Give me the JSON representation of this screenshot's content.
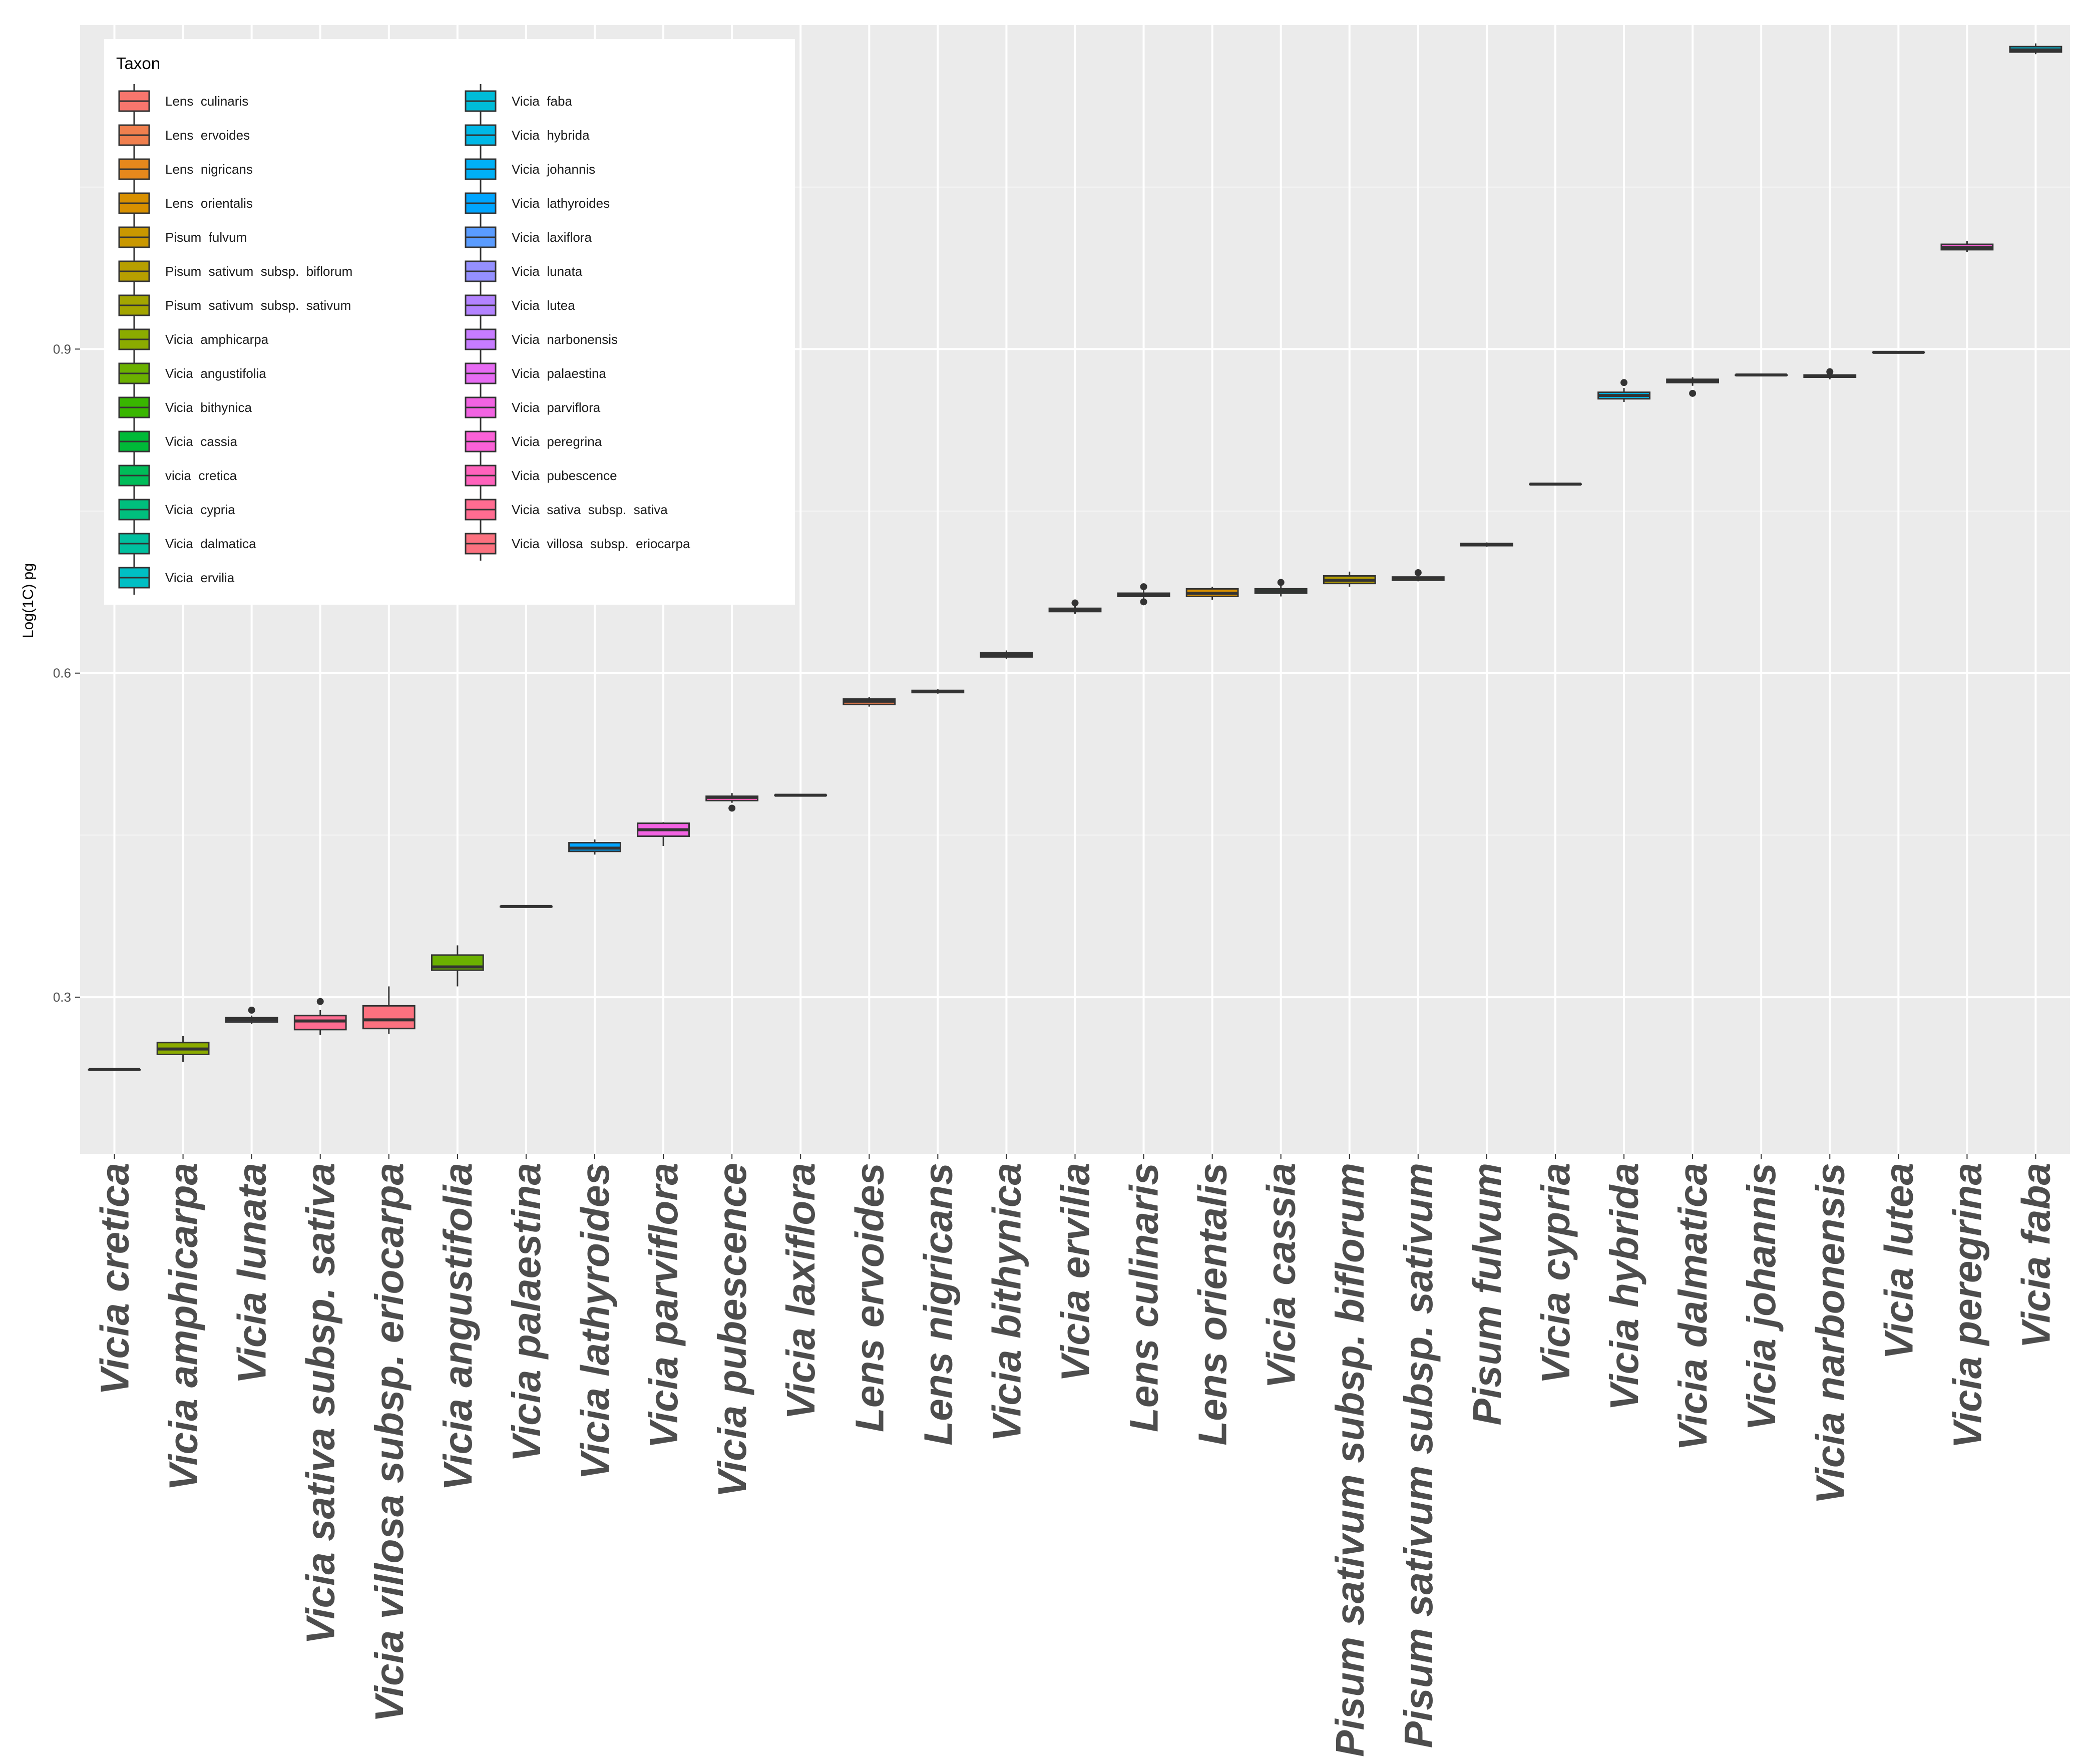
{
  "chart_data": {
    "type": "boxplot",
    "ylabel": "Log(1C) pg",
    "xlabel": "",
    "ylim": [
      0.155,
      1.2
    ],
    "yticks": [
      0.3,
      0.6,
      0.9
    ],
    "ytick_labels": [
      "0.3",
      "0.6",
      "0.9"
    ],
    "grid": true,
    "legend": {
      "title": "Taxon",
      "placement": "top-left inside",
      "entries": [
        {
          "label": "Lens  culinaris",
          "color": "#F8766D"
        },
        {
          "label": "Lens  ervoides",
          "color": "#F07F4E"
        },
        {
          "label": "Lens  nigricans",
          "color": "#E6881C"
        },
        {
          "label": "Lens  orientalis",
          "color": "#D89000"
        },
        {
          "label": "Pisum  fulvum",
          "color": "#C99800"
        },
        {
          "label": "Pisum  sativum  subsp.  biflorum",
          "color": "#B79F00"
        },
        {
          "label": "Pisum  sativum  subsp.  sativum",
          "color": "#A3A500"
        },
        {
          "label": "Vicia  amphicarpa",
          "color": "#8BAB00"
        },
        {
          "label": "Vicia  angustifolia",
          "color": "#6BB100"
        },
        {
          "label": "Vicia  bithynica",
          "color": "#39B600"
        },
        {
          "label": "Vicia  cassia",
          "color": "#00BA38"
        },
        {
          "label": "vicia  cretica",
          "color": "#00BC59"
        },
        {
          "label": "Vicia  cypria",
          "color": "#00BF7D"
        },
        {
          "label": "Vicia  dalmatica",
          "color": "#00C09F"
        },
        {
          "label": "Vicia  ervilia",
          "color": "#00BFC4"
        },
        {
          "label": "Vicia  faba",
          "color": "#00BCD8"
        },
        {
          "label": "Vicia  hybrida",
          "color": "#00B8E7"
        },
        {
          "label": "Vicia  johannis",
          "color": "#00B0F6"
        },
        {
          "label": "Vicia  lathyroides",
          "color": "#00A5FF"
        },
        {
          "label": "Vicia  laxiflora",
          "color": "#5A9CFF"
        },
        {
          "label": "Vicia  lunata",
          "color": "#9590FF"
        },
        {
          "label": "Vicia  lutea",
          "color": "#B383FF"
        },
        {
          "label": "Vicia  narbonensis",
          "color": "#C77CFF"
        },
        {
          "label": "Vicia  palaestina",
          "color": "#E76BF3"
        },
        {
          "label": "Vicia  parviflora",
          "color": "#F263E2"
        },
        {
          "label": "Vicia  peregrina",
          "color": "#FB61D7"
        },
        {
          "label": "Vicia  pubescence",
          "color": "#FF62BC"
        },
        {
          "label": "Vicia  sativa  subsp.  sativa",
          "color": "#FF6C91"
        },
        {
          "label": "Vicia  villosa  subsp.  eriocarpa",
          "color": "#FC717F"
        }
      ]
    },
    "boxes": [
      {
        "label": "Vicia cretica",
        "color": "#00BC59",
        "min": 0.233,
        "q1": 0.233,
        "median": 0.233,
        "q3": 0.233,
        "max": 0.233,
        "outliers": []
      },
      {
        "label": "Vicia amphicarpa",
        "color": "#8BAB00",
        "min": 0.24,
        "q1": 0.247,
        "median": 0.252,
        "q3": 0.258,
        "max": 0.264,
        "outliers": []
      },
      {
        "label": "Vicia lunata",
        "color": "#9590FF",
        "min": 0.275,
        "q1": 0.277,
        "median": 0.279,
        "q3": 0.281,
        "max": 0.283,
        "outliers": [
          0.288
        ]
      },
      {
        "label": "Vicia sativa subsp. sativa",
        "color": "#FF6C91",
        "min": 0.265,
        "q1": 0.27,
        "median": 0.278,
        "q3": 0.283,
        "max": 0.288,
        "outliers": [
          0.296
        ]
      },
      {
        "label": "Vicia villosa subsp. eriocarpa",
        "color": "#FC717F",
        "min": 0.266,
        "q1": 0.271,
        "median": 0.279,
        "q3": 0.292,
        "max": 0.31,
        "outliers": []
      },
      {
        "label": "Vicia angustifolia",
        "color": "#6BB100",
        "min": 0.31,
        "q1": 0.325,
        "median": 0.328,
        "q3": 0.339,
        "max": 0.348,
        "outliers": []
      },
      {
        "label": "Vicia palaestina",
        "color": "#E76BF3",
        "min": 0.384,
        "q1": 0.384,
        "median": 0.384,
        "q3": 0.384,
        "max": 0.384,
        "outliers": []
      },
      {
        "label": "Vicia lathyroides",
        "color": "#00A5FF",
        "min": 0.432,
        "q1": 0.435,
        "median": 0.438,
        "q3": 0.443,
        "max": 0.446,
        "outliers": []
      },
      {
        "label": "Vicia parviflora",
        "color": "#F263E2",
        "min": 0.44,
        "q1": 0.449,
        "median": 0.455,
        "q3": 0.461,
        "max": 0.462,
        "outliers": []
      },
      {
        "label": "Vicia pubescence",
        "color": "#FF62BC",
        "min": 0.48,
        "q1": 0.482,
        "median": 0.485,
        "q3": 0.486,
        "max": 0.489,
        "outliers": [
          0.475
        ]
      },
      {
        "label": "Vicia laxiflora",
        "color": "#5A9CFF",
        "min": 0.487,
        "q1": 0.487,
        "median": 0.487,
        "q3": 0.487,
        "max": 0.487,
        "outliers": []
      },
      {
        "label": "Lens ervoides",
        "color": "#F07F4E",
        "min": 0.569,
        "q1": 0.571,
        "median": 0.574,
        "q3": 0.576,
        "max": 0.578,
        "outliers": []
      },
      {
        "label": "Lens nigricans",
        "color": "#E6881C",
        "min": 0.581,
        "q1": 0.582,
        "median": 0.583,
        "q3": 0.584,
        "max": 0.585,
        "outliers": []
      },
      {
        "label": "Vicia bithynica",
        "color": "#39B600",
        "min": 0.613,
        "q1": 0.615,
        "median": 0.617,
        "q3": 0.619,
        "max": 0.621,
        "outliers": []
      },
      {
        "label": "Vicia ervilia",
        "color": "#00BFC4",
        "min": 0.655,
        "q1": 0.657,
        "median": 0.658,
        "q3": 0.66,
        "max": 0.662,
        "outliers": [
          0.665
        ]
      },
      {
        "label": "Lens culinaris",
        "color": "#F8766D",
        "min": 0.668,
        "q1": 0.671,
        "median": 0.672,
        "q3": 0.674,
        "max": 0.679,
        "outliers": [
          0.666,
          0.68
        ]
      },
      {
        "label": "Lens orientalis",
        "color": "#D89000",
        "min": 0.668,
        "q1": 0.671,
        "median": 0.674,
        "q3": 0.678,
        "max": 0.68,
        "outliers": []
      },
      {
        "label": "Vicia cassia",
        "color": "#00BA38",
        "min": 0.671,
        "q1": 0.674,
        "median": 0.676,
        "q3": 0.678,
        "max": 0.681,
        "outliers": [
          0.684
        ]
      },
      {
        "label": "Pisum sativum subsp. biflorum",
        "color": "#B79F00",
        "min": 0.68,
        "q1": 0.683,
        "median": 0.686,
        "q3": 0.69,
        "max": 0.694,
        "outliers": []
      },
      {
        "label": "Pisum sativum subsp. sativum",
        "color": "#A3A500",
        "min": 0.685,
        "q1": 0.686,
        "median": 0.688,
        "q3": 0.689,
        "max": 0.691,
        "outliers": [
          0.693
        ]
      },
      {
        "label": "Pisum fulvum",
        "color": "#C99800",
        "min": 0.717,
        "q1": 0.718,
        "median": 0.719,
        "q3": 0.72,
        "max": 0.721,
        "outliers": []
      },
      {
        "label": "Vicia cypria",
        "color": "#00BF7D",
        "min": 0.775,
        "q1": 0.775,
        "median": 0.775,
        "q3": 0.775,
        "max": 0.775,
        "outliers": []
      },
      {
        "label": "Vicia hybrida",
        "color": "#00B8E7",
        "min": 0.851,
        "q1": 0.854,
        "median": 0.857,
        "q3": 0.86,
        "max": 0.864,
        "outliers": [
          0.869
        ]
      },
      {
        "label": "Vicia dalmatica",
        "color": "#00C09F",
        "min": 0.866,
        "q1": 0.869,
        "median": 0.871,
        "q3": 0.872,
        "max": 0.874,
        "outliers": [
          0.859
        ]
      },
      {
        "label": "Vicia johannis",
        "color": "#00B0F6",
        "min": 0.876,
        "q1": 0.876,
        "median": 0.876,
        "q3": 0.876,
        "max": 0.876,
        "outliers": []
      },
      {
        "label": "Vicia narbonensis",
        "color": "#C77CFF",
        "min": 0.872,
        "q1": 0.874,
        "median": 0.875,
        "q3": 0.876,
        "max": 0.878,
        "outliers": [
          0.879
        ]
      },
      {
        "label": "Vicia lutea",
        "color": "#B383FF",
        "min": 0.897,
        "q1": 0.897,
        "median": 0.897,
        "q3": 0.897,
        "max": 0.897,
        "outliers": []
      },
      {
        "label": "Vicia peregrina",
        "color": "#FB61D7",
        "min": 0.99,
        "q1": 0.992,
        "median": 0.994,
        "q3": 0.997,
        "max": 1.0,
        "outliers": []
      },
      {
        "label": "Vicia faba",
        "color": "#00BCD8",
        "min": 1.173,
        "q1": 1.175,
        "median": 1.177,
        "q3": 1.18,
        "max": 1.183,
        "outliers": []
      }
    ]
  }
}
